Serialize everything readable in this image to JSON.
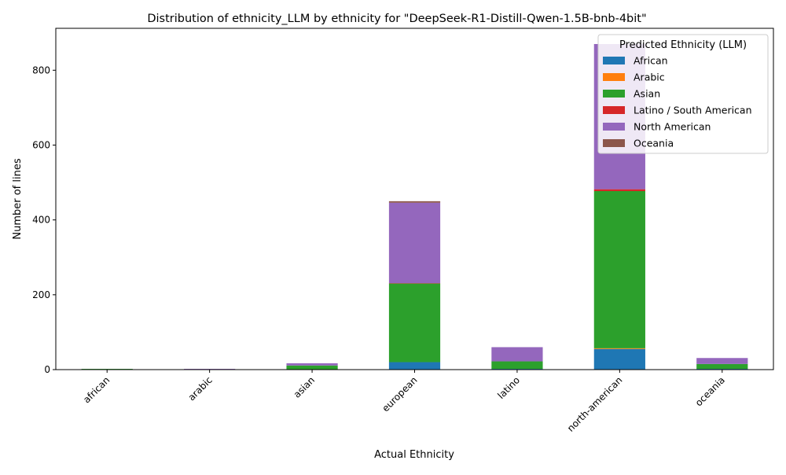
{
  "chart_data": {
    "type": "bar",
    "stacked": true,
    "title": "Distribution of ethnicity_LLM by ethnicity for \"DeepSeek-R1-Distill-Qwen-1.5B-bnb-4bit\"",
    "xlabel": "Actual Ethnicity",
    "ylabel": "Number of lines",
    "categories": [
      "african",
      "arabic",
      "asian",
      "european",
      "latino",
      "north-american",
      "oceania"
    ],
    "ylim": [
      0,
      912
    ],
    "yticks": [
      0,
      200,
      400,
      600,
      800
    ],
    "grid": false,
    "legend": {
      "title": "Predicted Ethnicity (LLM)",
      "placement": "top-right"
    },
    "series": [
      {
        "name": "African",
        "color": "#1f77b4",
        "values": [
          0,
          0,
          1,
          20,
          2,
          55,
          2
        ]
      },
      {
        "name": "Arabic",
        "color": "#ff7f0e",
        "values": [
          0,
          0,
          0,
          0,
          0,
          2,
          0
        ]
      },
      {
        "name": "Asian",
        "color": "#2ca02c",
        "values": [
          2,
          0,
          10,
          210,
          20,
          420,
          13
        ]
      },
      {
        "name": "Latino / South American",
        "color": "#d62728",
        "values": [
          0,
          0,
          0,
          1,
          0,
          5,
          0
        ]
      },
      {
        "name": "North American",
        "color": "#9467bd",
        "values": [
          0,
          2,
          6,
          215,
          38,
          388,
          16
        ]
      },
      {
        "name": "Oceania",
        "color": "#8c564b",
        "values": [
          0,
          0,
          0,
          4,
          0,
          0,
          0
        ]
      }
    ]
  }
}
